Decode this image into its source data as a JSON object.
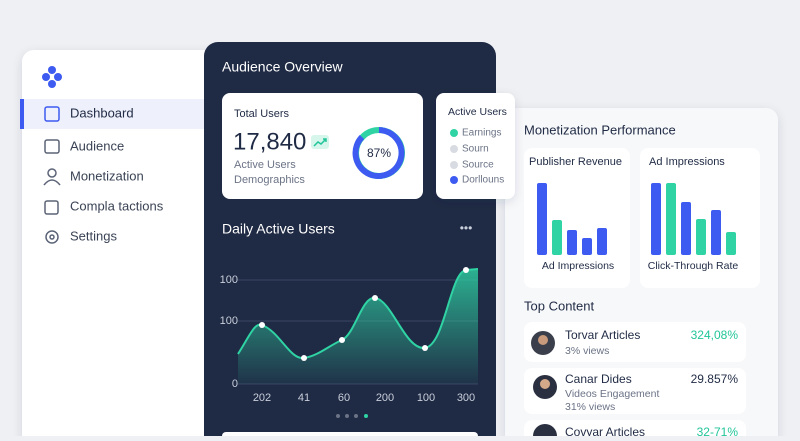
{
  "sidebar": {
    "nav": [
      "Dashboard",
      "Audience",
      "Monetization",
      "Compla tactions",
      "Settings"
    ]
  },
  "overview": {
    "title": "Audience Overview",
    "total_users": {
      "label": "Total Users",
      "value": "17,840",
      "sub1": "Active Users",
      "sub2": "Demographics",
      "donut": "87%"
    },
    "active_users": {
      "title": "Active Users",
      "legend": [
        "Earnings",
        "Sourn",
        "Source",
        "Dorllouns"
      ]
    }
  },
  "daily": {
    "title": "Daily Active Users",
    "menu": "•••",
    "y_labels": [
      "100",
      "100",
      "0"
    ],
    "x_labels": [
      "202",
      "41",
      "60",
      "200",
      "100",
      "300"
    ]
  },
  "monetization": {
    "title": "Monetization Performance",
    "cards": [
      {
        "title": "Publisher Revenue",
        "caption": "Ad Impressions"
      },
      {
        "title": "Ad Impressions",
        "caption": "Click-Through Rate"
      }
    ]
  },
  "top_content": {
    "title": "Top Content",
    "items": [
      {
        "title": "Torvar Articles",
        "subtitle": "3% views",
        "value": "324,08%"
      },
      {
        "title": "Canar Dides",
        "subtitle": "Videos Engagement",
        "extra": "31% views",
        "value": "29.857%"
      },
      {
        "title": "Covyar Articles",
        "value": "32-71%"
      }
    ]
  }
}
